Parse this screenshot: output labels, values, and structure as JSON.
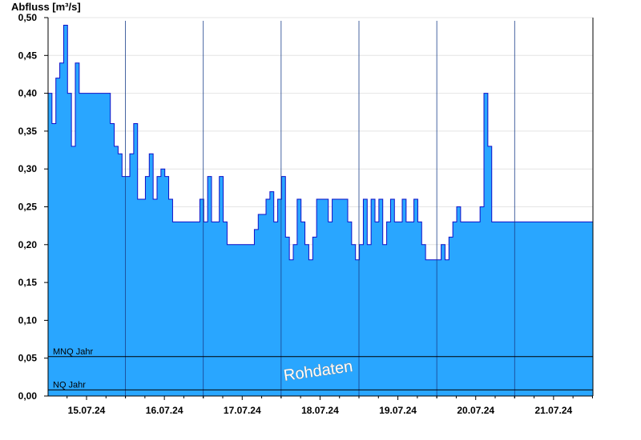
{
  "chart_data": {
    "type": "area",
    "ylabel": "Abfluss [m³/s]",
    "xlabel": "",
    "ylim": [
      0,
      0.5
    ],
    "y_ticks": [
      "0,00",
      "0,05",
      "0,10",
      "0,15",
      "0,20",
      "0,25",
      "0,30",
      "0,35",
      "0,40",
      "0,45",
      "0,50"
    ],
    "x_ticks": [
      "15.07.24",
      "16.07.24",
      "17.07.24",
      "18.07.24",
      "19.07.24",
      "20.07.24",
      "21.07.24"
    ],
    "x_range_days": [
      0,
      7
    ],
    "grid": true,
    "fill_color": "#29a6ff",
    "line_color": "#1010c8",
    "reference_lines": [
      {
        "label": "MNQ Jahr",
        "value": 0.052
      },
      {
        "label": "NQ Jahr",
        "value": 0.008
      }
    ],
    "watermark": "Rohdaten",
    "series": [
      {
        "x": [
          0.0,
          0.05,
          0.1,
          0.15,
          0.2,
          0.25,
          0.3,
          0.35,
          0.4,
          0.45,
          0.5,
          0.55,
          0.6,
          0.65,
          0.7,
          0.75,
          0.8,
          0.85,
          0.9,
          0.95,
          1.0,
          1.05,
          1.1,
          1.15,
          1.2,
          1.25,
          1.3,
          1.35,
          1.4,
          1.45,
          1.5,
          1.55,
          1.6,
          1.65,
          1.7,
          1.75,
          1.8,
          1.85,
          1.9,
          1.95,
          2.0,
          2.05,
          2.1,
          2.15,
          2.2,
          2.25,
          2.3,
          2.35,
          2.4,
          2.45,
          2.5,
          2.55,
          2.6,
          2.65,
          2.7,
          2.75,
          2.8,
          2.85,
          2.9,
          2.95,
          3.0,
          3.05,
          3.1,
          3.15,
          3.2,
          3.25,
          3.3,
          3.35,
          3.4,
          3.45,
          3.5,
          3.55,
          3.6,
          3.65,
          3.7,
          3.75,
          3.8,
          3.85,
          3.9,
          3.95,
          4.0,
          4.05,
          4.1,
          4.15,
          4.2,
          4.25,
          4.3,
          4.35,
          4.4,
          4.45,
          4.5,
          4.55,
          4.6,
          4.65,
          4.7,
          4.75,
          4.8,
          4.85,
          4.9,
          4.95,
          5.0,
          5.05,
          5.1,
          5.15,
          5.2,
          5.25,
          5.3,
          5.35,
          5.4,
          5.45,
          5.5,
          5.55,
          5.6,
          5.65,
          5.7,
          5.75,
          5.8,
          5.85,
          5.9,
          5.95,
          6.0,
          6.05,
          6.1,
          6.15,
          6.2,
          6.25,
          6.3,
          6.35,
          6.4,
          6.45,
          6.5,
          6.55,
          6.6,
          6.65,
          6.7,
          6.75,
          6.8,
          6.85,
          6.9,
          6.95,
          7.0
        ],
        "y": [
          0.4,
          0.36,
          0.42,
          0.44,
          0.49,
          0.4,
          0.33,
          0.44,
          0.4,
          0.4,
          0.4,
          0.4,
          0.4,
          0.4,
          0.4,
          0.4,
          0.36,
          0.33,
          0.32,
          0.29,
          0.29,
          0.32,
          0.36,
          0.26,
          0.26,
          0.29,
          0.32,
          0.26,
          0.29,
          0.3,
          0.29,
          0.26,
          0.23,
          0.23,
          0.23,
          0.23,
          0.23,
          0.23,
          0.23,
          0.26,
          0.23,
          0.29,
          0.23,
          0.23,
          0.29,
          0.23,
          0.2,
          0.2,
          0.2,
          0.2,
          0.2,
          0.2,
          0.2,
          0.22,
          0.24,
          0.24,
          0.26,
          0.27,
          0.23,
          0.26,
          0.29,
          0.21,
          0.18,
          0.2,
          0.26,
          0.23,
          0.2,
          0.18,
          0.21,
          0.26,
          0.26,
          0.26,
          0.23,
          0.26,
          0.26,
          0.26,
          0.26,
          0.23,
          0.2,
          0.18,
          0.2,
          0.26,
          0.2,
          0.26,
          0.23,
          0.26,
          0.2,
          0.23,
          0.26,
          0.23,
          0.23,
          0.26,
          0.23,
          0.23,
          0.26,
          0.23,
          0.2,
          0.18,
          0.18,
          0.18,
          0.18,
          0.2,
          0.18,
          0.21,
          0.23,
          0.25,
          0.23,
          0.23,
          0.23,
          0.23,
          0.23,
          0.25,
          0.4,
          0.33,
          0.23,
          0.23,
          0.23,
          0.23,
          0.23,
          0.23,
          0.23,
          0.23,
          0.23,
          0.23,
          0.23,
          0.23,
          0.23,
          0.23,
          0.23,
          0.23,
          0.23,
          0.23,
          0.23,
          0.23,
          0.23,
          0.23,
          0.23,
          0.23,
          0.23,
          0.23,
          0.23
        ]
      }
    ]
  }
}
